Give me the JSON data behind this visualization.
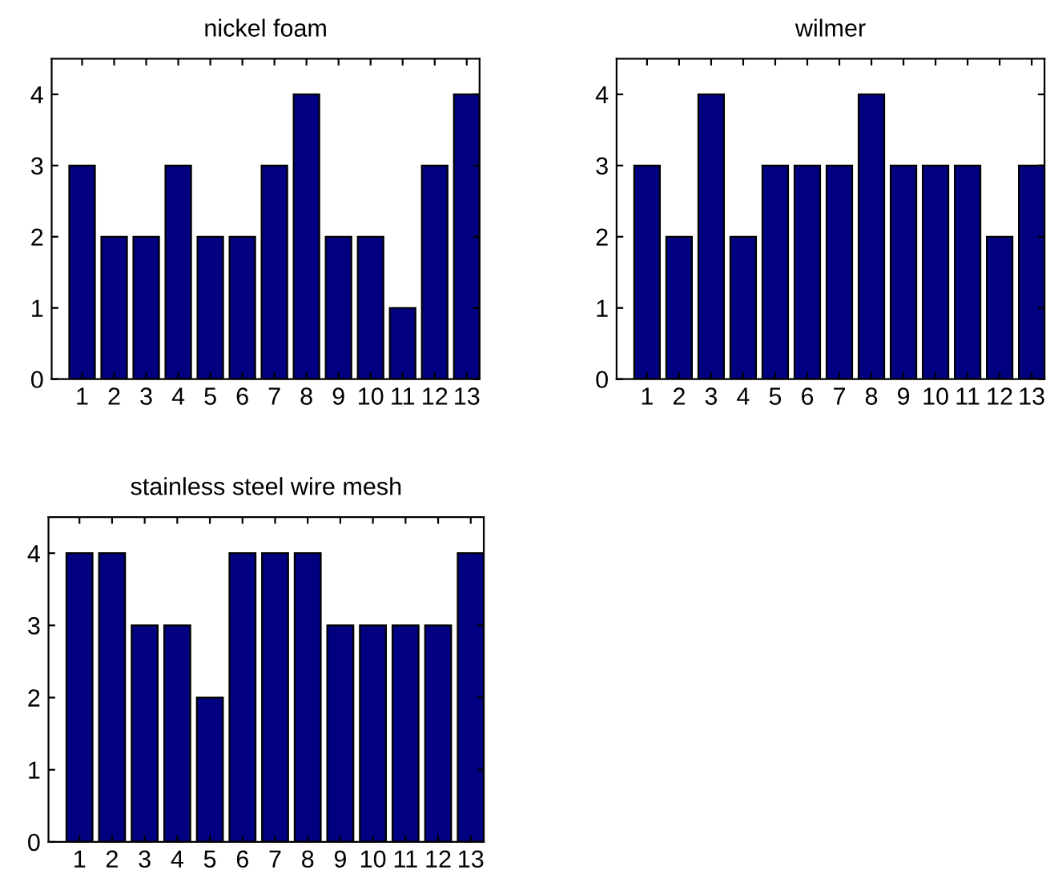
{
  "chart_data": [
    {
      "type": "bar",
      "title": "nickel foam",
      "categories": [
        "1",
        "2",
        "3",
        "4",
        "5",
        "6",
        "7",
        "8",
        "9",
        "10",
        "11",
        "12",
        "13"
      ],
      "values": [
        3,
        2,
        2,
        3,
        2,
        2,
        3,
        4,
        2,
        2,
        1,
        3,
        4
      ],
      "color": "#000080",
      "ylim": [
        0,
        4.5
      ],
      "yticks": [
        0,
        1,
        2,
        3,
        4
      ],
      "grid": false,
      "legend": false
    },
    {
      "type": "bar",
      "title": "wilmer",
      "categories": [
        "1",
        "2",
        "3",
        "4",
        "5",
        "6",
        "7",
        "8",
        "9",
        "10",
        "11",
        "12",
        "13"
      ],
      "values": [
        3,
        2,
        4,
        2,
        3,
        3,
        3,
        4,
        3,
        3,
        3,
        2,
        3
      ],
      "color": "#000080",
      "ylim": [
        0,
        4.5
      ],
      "yticks": [
        0,
        1,
        2,
        3,
        4
      ],
      "grid": false,
      "legend": false
    },
    {
      "type": "bar",
      "title": "stainless steel wire mesh",
      "categories": [
        "1",
        "2",
        "3",
        "4",
        "5",
        "6",
        "7",
        "8",
        "9",
        "10",
        "11",
        "12",
        "13"
      ],
      "values": [
        4,
        4,
        3,
        3,
        2,
        4,
        4,
        4,
        3,
        3,
        3,
        3,
        4
      ],
      "color": "#000080",
      "ylim": [
        0,
        4.5
      ],
      "yticks": [
        0,
        1,
        2,
        3,
        4
      ],
      "grid": false,
      "legend": false
    }
  ]
}
